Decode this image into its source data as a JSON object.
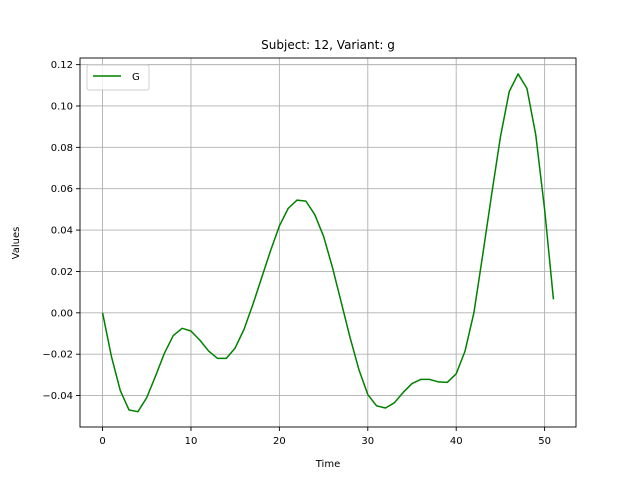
{
  "chart_data": {
    "type": "line",
    "title": "Subject: 12, Variant: g",
    "xlabel": "Time",
    "ylabel": "Values",
    "xlim": [
      -2.55,
      53.55
    ],
    "ylim": [
      -0.0552,
      0.1232
    ],
    "xticks": [
      0,
      10,
      20,
      30,
      40,
      50
    ],
    "yticks": [
      -0.04,
      -0.02,
      0.0,
      0.02,
      0.04,
      0.06,
      0.08,
      0.1,
      0.12
    ],
    "ytick_labels": [
      "−0.04",
      "−0.02",
      "0.00",
      "0.02",
      "0.04",
      "0.06",
      "0.08",
      "0.10",
      "0.12"
    ],
    "grid": true,
    "legend_position": "top-left",
    "colors": {
      "G": "#008000",
      "grid": "#b0b0b0"
    },
    "series": [
      {
        "name": "G",
        "x": [
          0,
          1,
          2,
          3,
          4,
          5,
          6,
          7,
          8,
          9,
          10,
          11,
          12,
          13,
          14,
          15,
          16,
          17,
          18,
          19,
          20,
          21,
          22,
          23,
          24,
          25,
          26,
          27,
          28,
          29,
          30,
          31,
          32,
          33,
          34,
          35,
          36,
          37,
          38,
          39,
          40,
          41,
          42,
          43,
          44,
          45,
          46,
          47,
          48,
          49,
          50,
          51
        ],
        "y": [
          0.0,
          -0.021,
          -0.0375,
          -0.047,
          -0.0478,
          -0.041,
          -0.0305,
          -0.0195,
          -0.011,
          -0.0075,
          -0.0088,
          -0.0132,
          -0.0185,
          -0.022,
          -0.022,
          -0.017,
          -0.008,
          0.004,
          0.017,
          0.03,
          0.042,
          0.0505,
          0.0545,
          0.054,
          0.0475,
          0.037,
          0.022,
          0.005,
          -0.012,
          -0.0275,
          -0.0395,
          -0.045,
          -0.046,
          -0.0435,
          -0.0385,
          -0.0342,
          -0.0322,
          -0.0322,
          -0.0334,
          -0.0336,
          -0.0295,
          -0.0185,
          0.0,
          0.028,
          0.057,
          0.085,
          0.107,
          0.1155,
          0.1085,
          0.086,
          0.05,
          0.0065
        ]
      }
    ]
  }
}
